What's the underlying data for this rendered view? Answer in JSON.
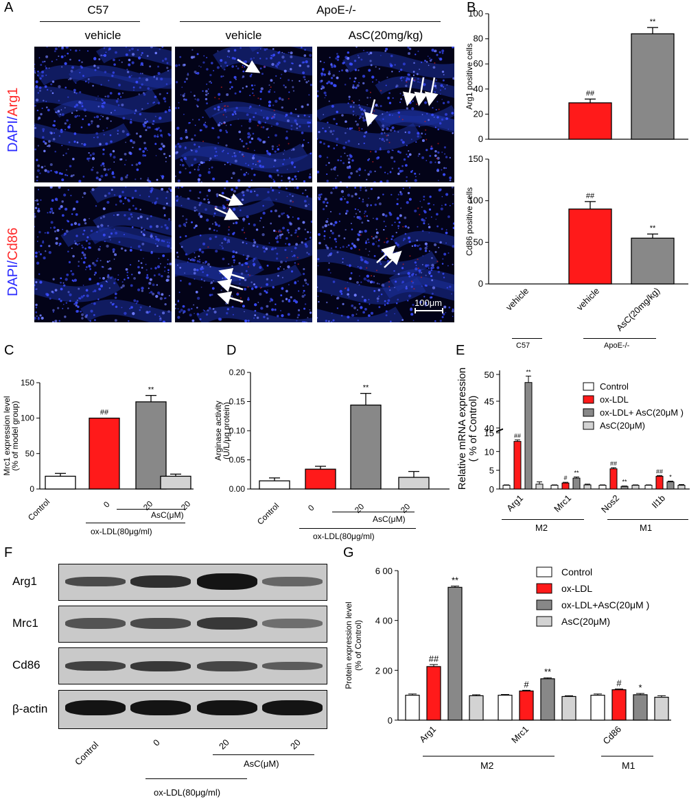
{
  "panel_letters": {
    "A": "A",
    "B": "B",
    "C": "C",
    "D": "D",
    "E": "E",
    "F": "F",
    "G": "G"
  },
  "panelA": {
    "group_c57": "C57",
    "group_apoe": "ApoE-/-",
    "col_labels": [
      "vehicle",
      "vehicle",
      "AsC(20mg/kg)"
    ],
    "row1_dapi": "DAPI/",
    "row1_marker": "Arg1",
    "row2_dapi": "DAPI/",
    "row2_marker": "Cd86",
    "scale_bar": "100μm"
  },
  "panelB": {
    "x_labels": [
      "vehicle",
      "vehicle",
      "AsC(20mg/kg)"
    ],
    "group_c57": "C57",
    "group_apoe": "ApoE-/-"
  },
  "panelC": {
    "x_labels": [
      "Control",
      "0",
      "20",
      "20"
    ],
    "asc_label": "AsC(μM)",
    "oxldl_label": "ox-LDL(80μg/ml)"
  },
  "panelD": {
    "x_labels": [
      "Control",
      "0",
      "20",
      "20"
    ],
    "asc_label": "AsC(μM)",
    "oxldl_label": "ox-LDL(80μg/ml)"
  },
  "panelE": {
    "group_m2": "M2",
    "group_m1": "M1"
  },
  "panelF": {
    "bands": [
      "Arg1",
      "Mrc1",
      "Cd86",
      "β-actin"
    ],
    "x_labels": [
      "Control",
      "0",
      "20",
      "20"
    ],
    "asc_label": "AsC(μM)",
    "oxldl_label": "ox-LDL(80μg/ml)"
  },
  "panelG": {
    "group_m2": "M2",
    "group_m1": "M1"
  },
  "colors": {
    "control": "#ffffff",
    "oxldl": "#ff1a1a",
    "asc": "#888888",
    "asc_only": "#d3d3d3",
    "dapi": "#2a2aff",
    "marker": "#ff2a2a"
  },
  "chart_data": [
    {
      "id": "B_top",
      "type": "bar",
      "title": "",
      "ylabel": "Arg1 positive cells",
      "ylim": [
        0,
        100
      ],
      "yticks": [
        0,
        20,
        40,
        60,
        80,
        100
      ],
      "categories": [
        "vehicle",
        "vehicle",
        "AsC(20mg/kg)"
      ],
      "values": [
        0,
        29,
        84
      ],
      "errors": [
        0,
        3,
        5
      ],
      "annotations": [
        "",
        "##",
        "**"
      ],
      "colors": [
        "#ffffff",
        "#ff1a1a",
        "#888888"
      ]
    },
    {
      "id": "B_bottom",
      "type": "bar",
      "title": "",
      "ylabel": "Cd86 positive cells",
      "ylim": [
        0,
        150
      ],
      "yticks": [
        0,
        50,
        100,
        150
      ],
      "categories": [
        "vehicle",
        "vehicle",
        "AsC(20mg/kg)"
      ],
      "values": [
        0,
        90,
        55
      ],
      "errors": [
        0,
        9,
        5
      ],
      "annotations": [
        "",
        "##",
        "**"
      ],
      "colors": [
        "#ffffff",
        "#ff1a1a",
        "#888888"
      ]
    },
    {
      "id": "C",
      "type": "bar",
      "title": "",
      "ylabel": "Mrc1 expression level\n(% of model group)",
      "ylim": [
        0,
        150
      ],
      "yticks": [
        0,
        50,
        100,
        150
      ],
      "categories": [
        "Control",
        "0",
        "20",
        "20"
      ],
      "values": [
        18,
        100,
        123,
        18
      ],
      "errors": [
        4,
        0,
        9,
        3
      ],
      "annotations": [
        "",
        "##",
        "**",
        ""
      ],
      "colors": [
        "#ffffff",
        "#ff1a1a",
        "#888888",
        "#d3d3d3"
      ]
    },
    {
      "id": "D",
      "type": "bar",
      "title": "",
      "ylabel": "Arginase activity\n(U/L/μg protein)",
      "ylim": [
        0,
        0.2
      ],
      "yticks": [
        "0.00",
        "0.05",
        "0.10",
        "0.15",
        "0.20"
      ],
      "categories": [
        "Control",
        "0",
        "20",
        "20"
      ],
      "values": [
        0.014,
        0.034,
        0.144,
        0.02
      ],
      "errors": [
        0.005,
        0.005,
        0.02,
        0.01
      ],
      "annotations": [
        "",
        "",
        "**",
        ""
      ],
      "colors": [
        "#ffffff",
        "#ff1a1a",
        "#888888",
        "#d3d3d3"
      ]
    },
    {
      "id": "E",
      "type": "bar",
      "title": "",
      "ylabel": "Relative mRNA expression\n( % of Control)",
      "yaxis_break": [
        15,
        40
      ],
      "yticks_lower": [
        0,
        5,
        10,
        15
      ],
      "yticks_upper": [
        40,
        45,
        50
      ],
      "categories": [
        "Arg1",
        "Mrc1",
        "Nos2",
        "Il1b"
      ],
      "series": [
        {
          "name": "Control",
          "values": [
            1,
            1,
            1,
            1
          ],
          "errors": [
            0.1,
            0.1,
            0.1,
            0.1
          ],
          "annotations": [
            "",
            "",
            "",
            ""
          ]
        },
        {
          "name": "ox-LDL",
          "values": [
            12.7,
            1.6,
            5.4,
            3.4
          ],
          "errors": [
            0.4,
            0.2,
            0.3,
            0.2
          ],
          "annotations": [
            "##",
            "#",
            "##",
            "##"
          ]
        },
        {
          "name": "ox-LDL+ AsC(20μM )",
          "values": [
            48.5,
            2.9,
            0.7,
            1.9
          ],
          "errors": [
            1.2,
            0.3,
            0.1,
            0.2
          ],
          "annotations": [
            "**",
            "**",
            "**",
            "*"
          ]
        },
        {
          "name": "AsC(20μM)",
          "values": [
            1.3,
            1.1,
            1.0,
            1.0
          ],
          "errors": [
            0.6,
            0.2,
            0.1,
            0.2
          ],
          "annotations": [
            "",
            "",
            "",
            ""
          ]
        }
      ],
      "legend": "top-right"
    },
    {
      "id": "G",
      "type": "bar",
      "title": "",
      "ylabel": "Protein expression level\n(% of Control)",
      "ylim": [
        0,
        600
      ],
      "yticks": [
        "0",
        "2 00",
        "4 00",
        "6 00"
      ],
      "categories": [
        "Arg1",
        "Mrc1",
        "Cd86"
      ],
      "series": [
        {
          "name": "Control",
          "values": [
            100,
            100,
            100
          ],
          "errors": [
            5,
            3,
            5
          ],
          "annotations": [
            "",
            "",
            ""
          ]
        },
        {
          "name": "ox-LDL",
          "values": [
            215,
            117,
            122
          ],
          "errors": [
            8,
            3,
            3
          ],
          "annotations": [
            "##",
            "#",
            "#"
          ]
        },
        {
          "name": "ox-LDL+AsC(20μM )",
          "values": [
            533,
            166,
            102
          ],
          "errors": [
            5,
            4,
            5
          ],
          "annotations": [
            "**",
            "**",
            "*"
          ]
        },
        {
          "name": "AsC(20μM)",
          "values": [
            98,
            95,
            92
          ],
          "errors": [
            4,
            3,
            6
          ],
          "annotations": [
            "",
            "",
            ""
          ]
        }
      ],
      "legend": "top-right"
    }
  ]
}
